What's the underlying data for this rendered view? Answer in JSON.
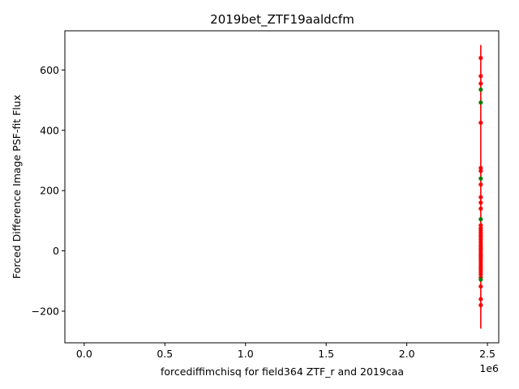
{
  "chart_data": {
    "type": "scatter",
    "title": "2019bet_ZTF19aaldcfm",
    "xlabel": "forcediffimchisq for field364 ZTF_r and 2019caa",
    "ylabel": "Forced Difference Image PSF-fit Flux",
    "x_offset_label": "1e6",
    "xlim": [
      -0.12,
      2.57
    ],
    "ylim": [
      -305,
      730
    ],
    "x_ticks": [
      {
        "value": 0.0,
        "label": "0.0"
      },
      {
        "value": 0.5,
        "label": "0.5"
      },
      {
        "value": 1.0,
        "label": "1.0"
      },
      {
        "value": 1.5,
        "label": "1.5"
      },
      {
        "value": 2.0,
        "label": "2.0"
      },
      {
        "value": 2.5,
        "label": "2.5"
      }
    ],
    "y_ticks": [
      {
        "value": -200,
        "label": "−200"
      },
      {
        "value": 0,
        "label": "0"
      },
      {
        "value": 200,
        "label": "200"
      },
      {
        "value": 400,
        "label": "400"
      },
      {
        "value": 600,
        "label": "600"
      }
    ],
    "grid": false,
    "colors": {
      "red_series": "#ff0000",
      "green_series": "#008000",
      "errorbar": "#ff0000"
    },
    "errorbar": {
      "x": 2.4587,
      "y_low": -258,
      "y_high": 683
    },
    "series": [
      {
        "color": "red",
        "x": 2.4587,
        "values": [
          640,
          580,
          555,
          425,
          275,
          265,
          220,
          178,
          160,
          140,
          85,
          75,
          68,
          60,
          52,
          45,
          38,
          30,
          22,
          15,
          8,
          2,
          -5,
          -12,
          -18,
          -25,
          -32,
          -40,
          -48,
          -55,
          -62,
          -70,
          -78,
          -88,
          -118,
          -160,
          -180
        ]
      },
      {
        "color": "green",
        "x": 2.4587,
        "values": [
          535,
          492,
          240,
          105,
          -95
        ]
      }
    ]
  }
}
